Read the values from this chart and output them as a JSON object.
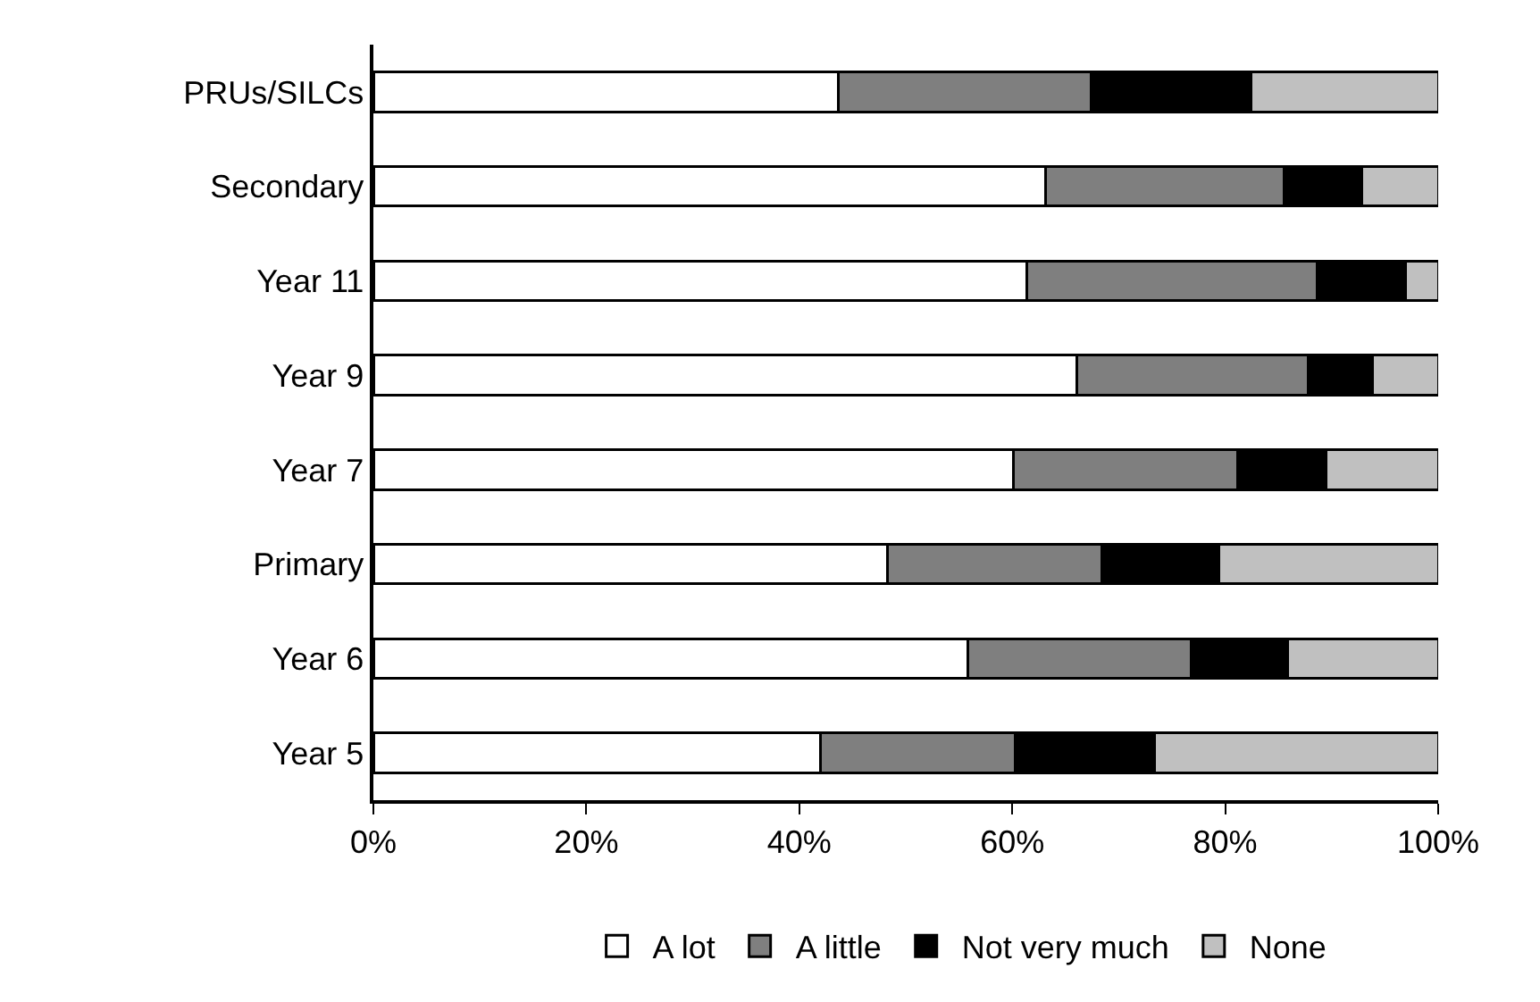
{
  "chart_data": {
    "type": "bar",
    "orientation": "horizontal",
    "stacked": true,
    "categories": [
      "PRUs/SILCs",
      "Secondary",
      "Year 11",
      "Year 9",
      "Year 7",
      "Primary",
      "Year 6",
      "Year 5"
    ],
    "series": [
      {
        "name": "A lot",
        "color": "#ffffff",
        "values": [
          43.7,
          63.1,
          61.4,
          66.1,
          60.1,
          48.3,
          55.8,
          42.0
        ]
      },
      {
        "name": "A little",
        "color": "#7f7f7f",
        "values": [
          23.7,
          22.4,
          27.2,
          21.7,
          21.1,
          20.1,
          21.0,
          18.3
        ]
      },
      {
        "name": "Not very much",
        "color": "#000000",
        "values": [
          15.0,
          7.3,
          8.3,
          6.0,
          8.3,
          11.0,
          9.1,
          13.1
        ]
      },
      {
        "name": "None",
        "color": "#c0c0c0",
        "values": [
          17.6,
          7.2,
          3.1,
          6.2,
          10.5,
          20.6,
          14.1,
          26.6
        ]
      }
    ],
    "xlim": [
      0,
      100
    ],
    "xticks": [
      {
        "value": 0,
        "label": "0%"
      },
      {
        "value": 20,
        "label": "20%"
      },
      {
        "value": 40,
        "label": "40%"
      },
      {
        "value": 60,
        "label": "60%"
      },
      {
        "value": 80,
        "label": "80%"
      },
      {
        "value": 100,
        "label": "100%"
      }
    ],
    "legend": "bottom"
  }
}
